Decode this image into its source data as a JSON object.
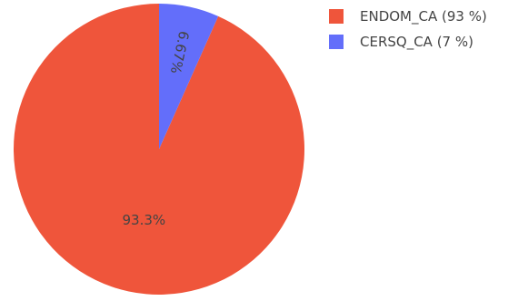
{
  "chart_data": {
    "type": "pie",
    "title": "",
    "slices": [
      {
        "label": "ENDOM_CA",
        "value": 93.3,
        "text": "93.3%",
        "legend_text": "ENDOM_CA (93 %)",
        "color": "#EF553B",
        "text_color": "#444444"
      },
      {
        "label": "CERSQ_CA",
        "value": 6.67,
        "text": "6.67%",
        "legend_text": "CERSQ_CA (7 %)",
        "color": "#636EFA",
        "text_color": "#ffffff"
      }
    ],
    "direction": "counterclockwise",
    "start": "12 o'clock",
    "legend_position": "top-right"
  }
}
